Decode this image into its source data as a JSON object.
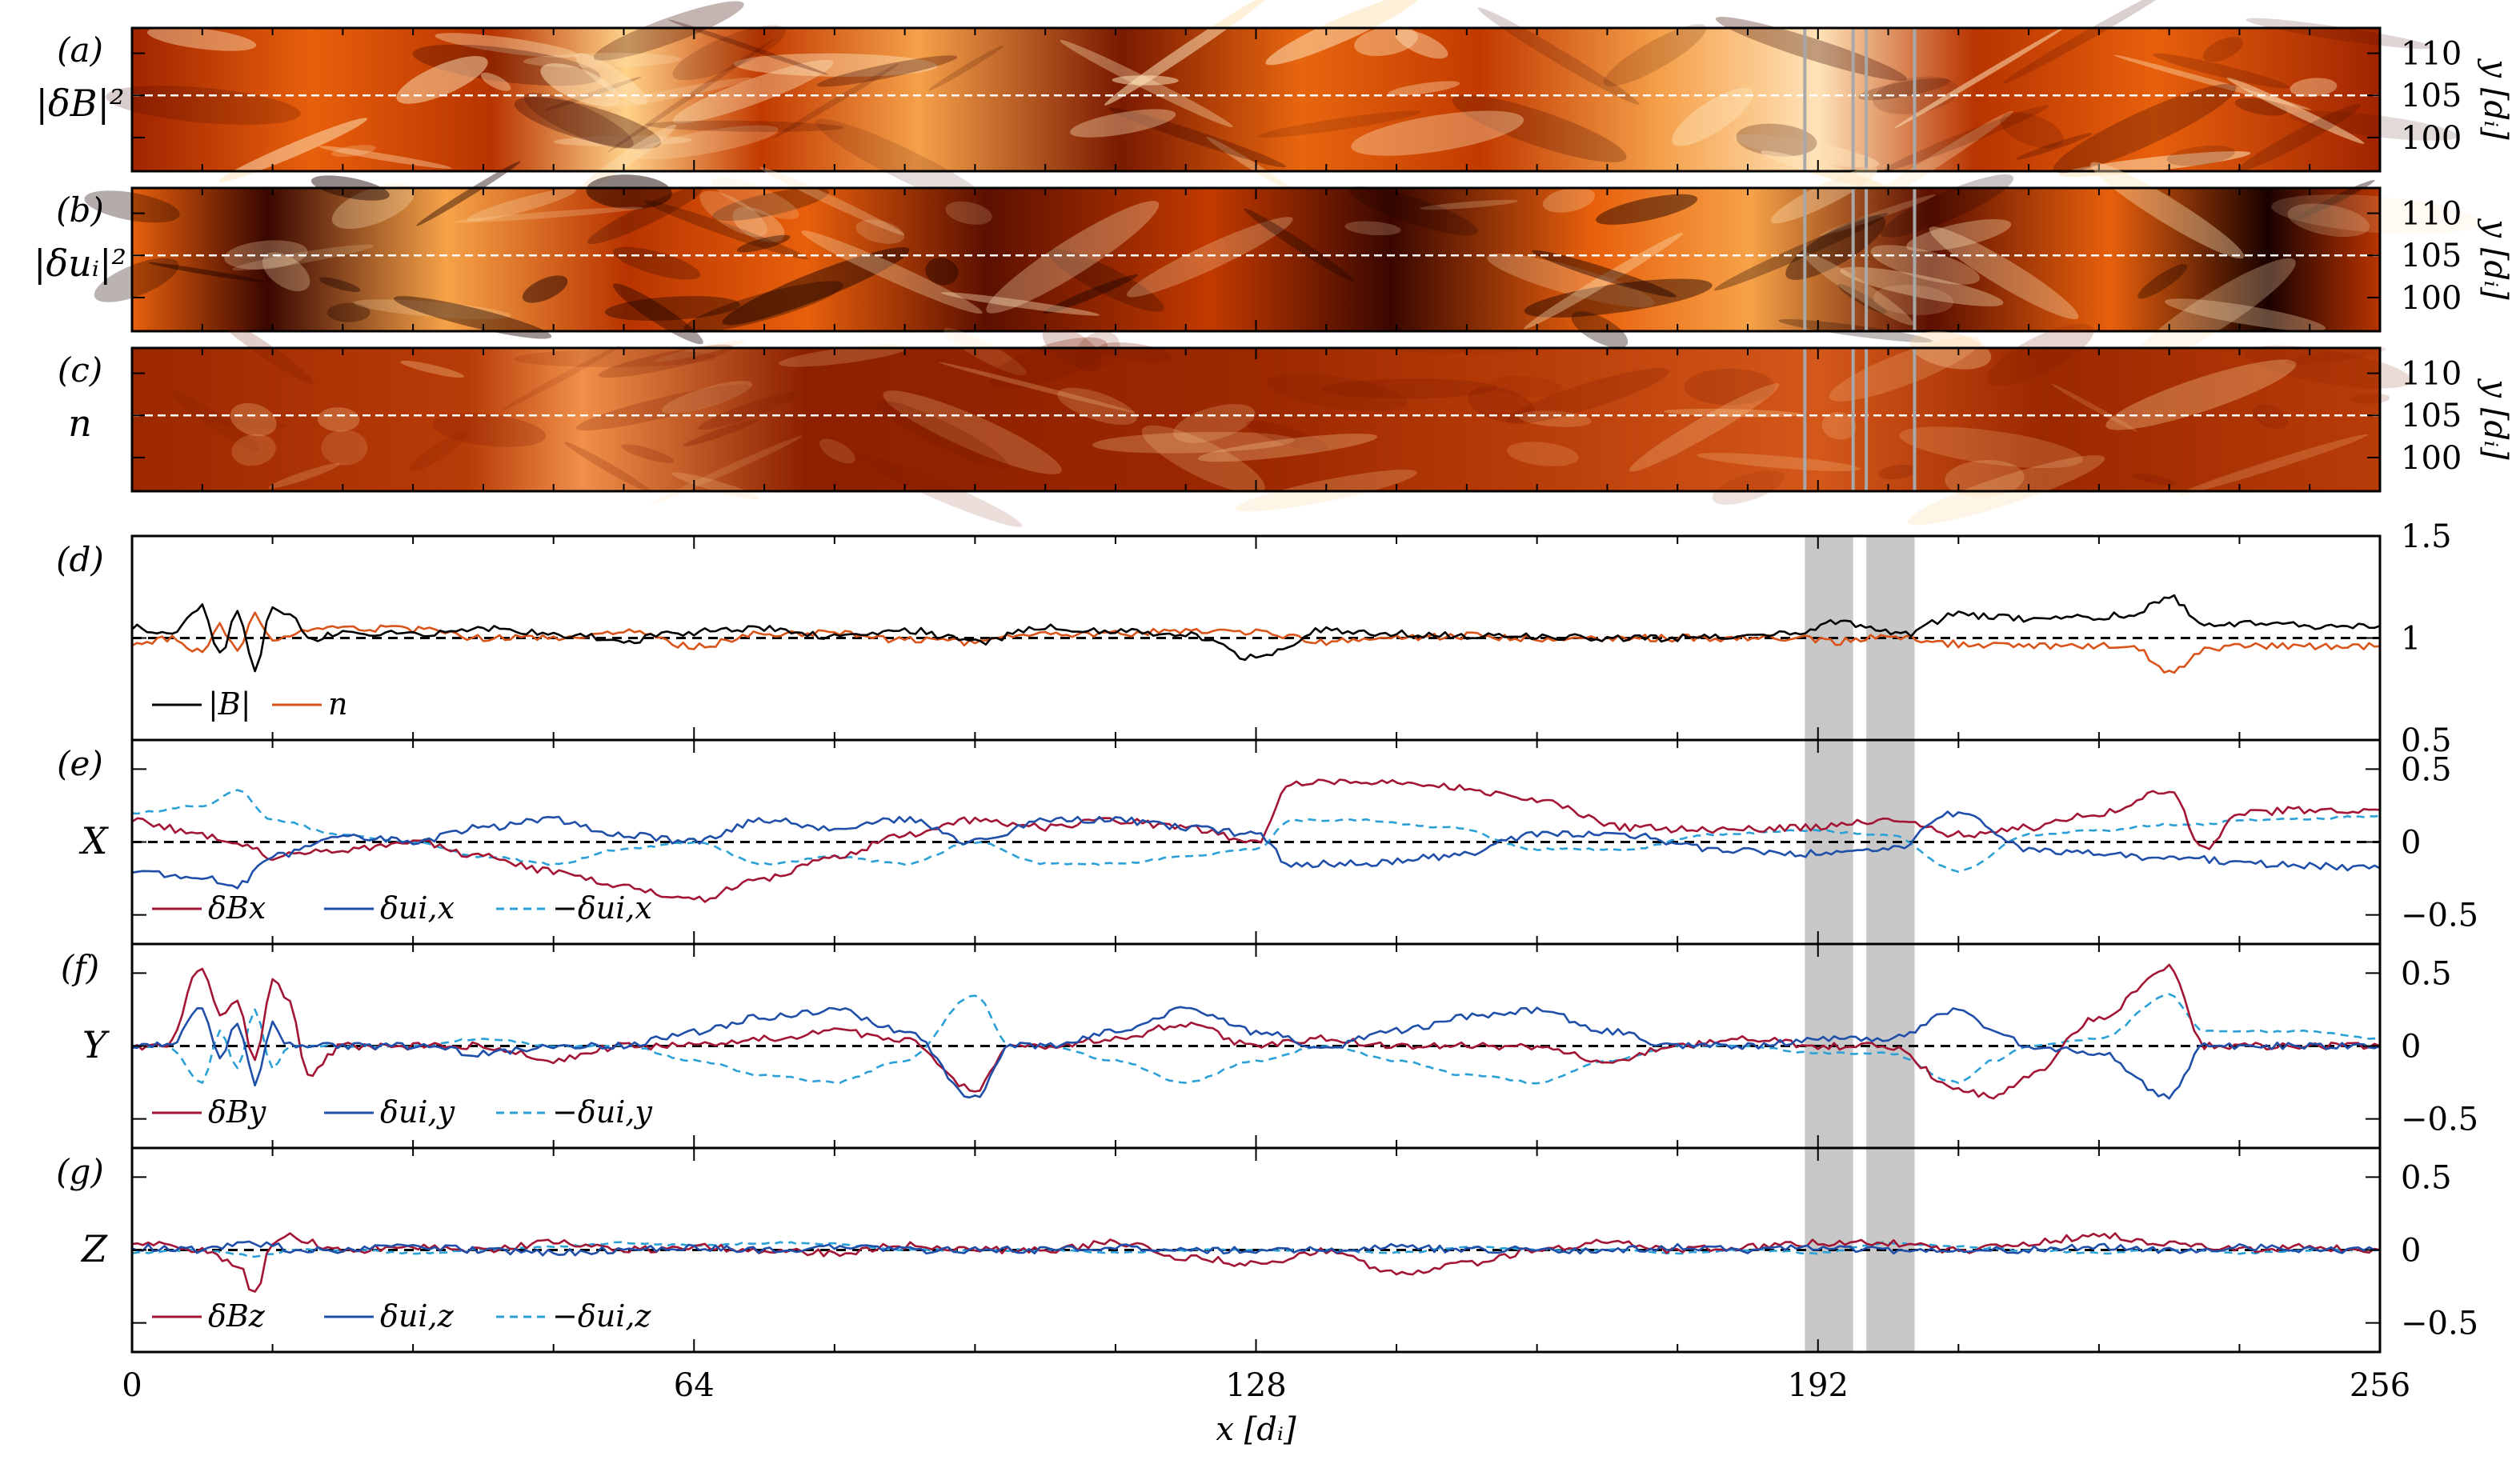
{
  "chart_data": [
    {
      "type": "heatmap",
      "panel_label": "(a)",
      "quantity_label": "|δB|²",
      "xlim": [
        0,
        256
      ],
      "ylim": [
        96,
        113
      ],
      "y_ticks": [
        "110",
        "105",
        "100"
      ],
      "ylabel": "y [dᵢ]",
      "dashed_line_y": 105,
      "cut_lines_x": [
        190.5,
        196,
        197.5,
        203
      ],
      "colormap": [
        "#3a0700",
        "#7a1a00",
        "#c23a00",
        "#e8660f",
        "#f5a04a",
        "#ffe3b8"
      ]
    },
    {
      "type": "heatmap",
      "panel_label": "(b)",
      "quantity_label": "|δuᵢ|²",
      "xlim": [
        0,
        256
      ],
      "ylim": [
        96,
        113
      ],
      "y_ticks": [
        "110",
        "105",
        "100"
      ],
      "ylabel": "y [dᵢ]",
      "dashed_line_y": 105,
      "cut_lines_x": [
        190.5,
        196,
        197.5,
        203
      ],
      "colormap": [
        "#1a0200",
        "#5c1000",
        "#b83400",
        "#e8600c",
        "#f6a248",
        "#ffe4b8"
      ]
    },
    {
      "type": "heatmap",
      "panel_label": "(c)",
      "quantity_label": "n",
      "xlim": [
        0,
        256
      ],
      "ylim": [
        96,
        113
      ],
      "y_ticks": [
        "110",
        "105",
        "100"
      ],
      "ylabel": "y [dᵢ]",
      "dashed_line_y": 105,
      "cut_lines_x": [
        190.5,
        196,
        197.5,
        203
      ],
      "colormap": [
        "#7a1800",
        "#9c2800",
        "#b83c08",
        "#d4581a",
        "#f0904a",
        "#ffd49a"
      ]
    },
    {
      "type": "line",
      "panel_label": "(d)",
      "xlim": [
        0,
        256
      ],
      "ylim": [
        0.5,
        1.5
      ],
      "y_ticks": [
        "1.5",
        "1",
        "0.5"
      ],
      "reference_line": 1,
      "shaded_x": [
        [
          190.5,
          196
        ],
        [
          197.5,
          203
        ]
      ],
      "series": [
        {
          "name": "|B|",
          "color": "#000000",
          "dash": "solid"
        },
        {
          "name": "n",
          "color": "#d9541a",
          "dash": "solid"
        }
      ],
      "x": [
        0,
        4,
        8,
        10,
        12,
        14,
        16,
        18,
        20,
        24,
        32,
        40,
        48,
        56,
        64,
        72,
        80,
        88,
        96,
        104,
        112,
        120,
        128,
        136,
        144,
        152,
        160,
        168,
        176,
        184,
        190,
        194,
        198,
        202,
        208,
        212,
        216,
        224,
        228,
        232,
        236,
        240,
        248,
        256
      ],
      "values_B": [
        1.05,
        1.02,
        1.15,
        0.92,
        1.12,
        0.85,
        1.15,
        1.12,
        0.99,
        1.03,
        1.02,
        1.05,
        1.02,
        0.99,
        1.03,
        1.05,
        1.01,
        1.04,
        0.98,
        1.05,
        1.03,
        1.02,
        0.9,
        1.04,
        1.02,
        1.01,
        1.01,
        1.0,
        1.0,
        1.0,
        1.03,
        1.08,
        1.05,
        1.02,
        1.12,
        1.1,
        1.09,
        1.1,
        1.12,
        1.2,
        1.06,
        1.07,
        1.06,
        1.06
      ],
      "values_n": [
        0.97,
        1.0,
        0.93,
        1.06,
        0.93,
        1.12,
        0.98,
        1.0,
        1.03,
        1.05,
        1.04,
        1.0,
        1.0,
        1.03,
        0.96,
        1.02,
        1.03,
        0.99,
        0.98,
        1.02,
        1.02,
        1.04,
        1.03,
        0.98,
        1.0,
        1.01,
        1.0,
        1.0,
        1.0,
        1.0,
        1.0,
        0.98,
        1.0,
        1.0,
        0.97,
        0.96,
        0.96,
        0.96,
        0.95,
        0.83,
        0.94,
        0.96,
        0.96,
        0.96
      ]
    },
    {
      "type": "line",
      "panel_label": "(e)",
      "quantity_label": "X",
      "xlim": [
        0,
        256
      ],
      "ylim": [
        -0.7,
        0.7
      ],
      "y_ticks": [
        "0.5",
        "0",
        "-0.5"
      ],
      "reference_line": 0,
      "shaded_x": [
        [
          190.5,
          196
        ],
        [
          197.5,
          203
        ]
      ],
      "series": [
        {
          "name": "δBx",
          "color": "#a31535",
          "dash": "solid"
        },
        {
          "name": "δui,x",
          "color": "#1f4fa8",
          "dash": "solid"
        },
        {
          "name": "−δui,x",
          "color": "#2aa0d6",
          "dash": "dashed"
        }
      ],
      "x": [
        0,
        8,
        12,
        16,
        24,
        32,
        40,
        48,
        56,
        64,
        72,
        80,
        88,
        96,
        104,
        112,
        120,
        128,
        132,
        140,
        150,
        160,
        170,
        180,
        190,
        200,
        208,
        216,
        224,
        232,
        236,
        240,
        248,
        256
      ],
      "values_Bx": [
        0.15,
        0.05,
        0.0,
        -0.1,
        -0.05,
        0.0,
        -0.1,
        -0.2,
        -0.3,
        -0.4,
        -0.25,
        -0.1,
        0.05,
        0.15,
        0.1,
        0.15,
        0.1,
        0.0,
        0.4,
        0.42,
        0.38,
        0.28,
        0.1,
        0.08,
        0.1,
        0.15,
        0.05,
        0.1,
        0.2,
        0.35,
        -0.05,
        0.2,
        0.22,
        0.22
      ],
      "values_uix": [
        -0.2,
        -0.25,
        -0.3,
        -0.1,
        0.05,
        0.0,
        0.1,
        0.15,
        0.05,
        0.0,
        0.15,
        0.1,
        0.15,
        0.0,
        0.15,
        0.15,
        0.1,
        0.05,
        -0.15,
        -0.15,
        -0.1,
        0.05,
        0.05,
        -0.05,
        -0.08,
        -0.05,
        0.2,
        -0.05,
        -0.08,
        -0.12,
        -0.12,
        -0.15,
        -0.16,
        -0.18
      ],
      "values_neg_uix": [
        0.2,
        0.25,
        0.35,
        0.15,
        0.05,
        0.0,
        -0.1,
        -0.15,
        -0.05,
        0.0,
        -0.15,
        -0.1,
        -0.15,
        0.0,
        -0.15,
        -0.15,
        -0.1,
        -0.05,
        0.15,
        0.15,
        0.1,
        -0.05,
        -0.05,
        0.05,
        0.08,
        0.05,
        -0.2,
        0.05,
        0.08,
        0.12,
        0.12,
        0.15,
        0.16,
        0.18
      ]
    },
    {
      "type": "line",
      "panel_label": "(f)",
      "quantity_label": "Y",
      "xlim": [
        0,
        256
      ],
      "ylim": [
        -0.7,
        0.7
      ],
      "y_ticks": [
        "0.5",
        "0",
        "-0.5"
      ],
      "reference_line": 0,
      "shaded_x": [
        [
          190.5,
          196
        ],
        [
          197.5,
          203
        ]
      ],
      "series": [
        {
          "name": "δBy",
          "color": "#a31535",
          "dash": "solid"
        },
        {
          "name": "δui,y",
          "color": "#1f4fa8",
          "dash": "solid"
        },
        {
          "name": "−δui,y",
          "color": "#2aa0d6",
          "dash": "dashed"
        }
      ],
      "x": [
        0,
        4,
        8,
        10,
        12,
        14,
        16,
        18,
        20,
        24,
        32,
        40,
        48,
        56,
        64,
        72,
        80,
        88,
        96,
        100,
        104,
        112,
        120,
        128,
        136,
        144,
        152,
        160,
        168,
        176,
        184,
        192,
        200,
        208,
        212,
        216,
        224,
        232,
        236,
        240,
        248,
        256
      ],
      "values_By": [
        0.0,
        0.0,
        0.55,
        0.2,
        0.3,
        -0.1,
        0.45,
        0.3,
        -0.2,
        0.0,
        0.0,
        0.0,
        -0.1,
        0.0,
        0.0,
        0.05,
        0.1,
        0.05,
        -0.3,
        0.0,
        0.0,
        0.05,
        0.15,
        0.0,
        0.05,
        0.0,
        0.0,
        0.0,
        -0.1,
        0.0,
        0.05,
        0.0,
        0.0,
        -0.3,
        -0.35,
        -0.2,
        0.2,
        0.55,
        0.0,
        0.0,
        0.0,
        0.0
      ],
      "values_uiy": [
        0.0,
        0.0,
        0.25,
        -0.1,
        0.15,
        -0.25,
        0.15,
        0.0,
        0.0,
        0.0,
        0.0,
        -0.05,
        0.0,
        0.0,
        0.1,
        0.2,
        0.25,
        0.1,
        -0.35,
        0.0,
        0.0,
        0.1,
        0.25,
        0.1,
        0.0,
        0.1,
        0.2,
        0.25,
        0.1,
        0.0,
        0.0,
        0.05,
        0.05,
        0.25,
        0.1,
        0.0,
        -0.05,
        -0.35,
        0.0,
        0.0,
        0.0,
        0.0
      ],
      "values_neg_uiy": [
        0.0,
        0.0,
        -0.25,
        0.1,
        -0.15,
        0.25,
        -0.15,
        0.0,
        0.0,
        0.0,
        0.0,
        0.05,
        0.0,
        0.0,
        -0.1,
        -0.2,
        -0.25,
        -0.1,
        0.35,
        0.0,
        0.0,
        -0.1,
        -0.25,
        -0.1,
        0.0,
        -0.1,
        -0.2,
        -0.25,
        -0.1,
        0.0,
        0.0,
        -0.05,
        -0.05,
        -0.25,
        -0.1,
        0.0,
        0.05,
        0.35,
        0.1,
        0.1,
        0.1,
        0.05
      ]
    },
    {
      "type": "line",
      "panel_label": "(g)",
      "quantity_label": "Z",
      "xlim": [
        0,
        256
      ],
      "ylim": [
        -0.7,
        0.7
      ],
      "y_ticks": [
        "0.5",
        "0",
        "-0.5"
      ],
      "reference_line": 0,
      "shaded_x": [
        [
          190.5,
          196
        ],
        [
          197.5,
          203
        ]
      ],
      "series": [
        {
          "name": "δBz",
          "color": "#a31535",
          "dash": "solid"
        },
        {
          "name": "δui,z",
          "color": "#1f4fa8",
          "dash": "solid"
        },
        {
          "name": "−δui,z",
          "color": "#2aa0d6",
          "dash": "dashed"
        }
      ],
      "x": [
        0,
        8,
        12,
        14,
        16,
        18,
        20,
        24,
        32,
        40,
        48,
        56,
        64,
        72,
        80,
        88,
        96,
        104,
        112,
        120,
        128,
        136,
        144,
        152,
        160,
        168,
        176,
        184,
        192,
        200,
        208,
        216,
        224,
        232,
        240,
        248,
        256
      ],
      "values_Bz": [
        0.05,
        0.0,
        -0.1,
        -0.3,
        0.05,
        0.1,
        0.05,
        0.0,
        0.02,
        0.0,
        0.05,
        0.0,
        0.02,
        0.0,
        -0.02,
        0.03,
        0.0,
        0.0,
        0.05,
        -0.05,
        -0.1,
        0.0,
        -0.15,
        -0.1,
        0.0,
        0.05,
        0.0,
        0.02,
        0.05,
        0.05,
        0.0,
        0.05,
        0.1,
        0.05,
        0.0,
        0.02,
        0.0
      ],
      "values_uiz": [
        0.02,
        0.0,
        0.03,
        0.05,
        0.03,
        0.0,
        0.0,
        0.0,
        0.02,
        0.0,
        -0.02,
        0.0,
        0.02,
        0.0,
        0.02,
        0.0,
        0.0,
        0.0,
        0.02,
        0.0,
        0.0,
        0.0,
        0.02,
        0.0,
        0.0,
        0.0,
        0.02,
        0.0,
        0.02,
        0.0,
        0.0,
        0.0,
        0.02,
        0.0,
        0.02,
        0.0,
        0.0
      ],
      "values_neg_uiz": [
        -0.02,
        0.0,
        -0.03,
        -0.05,
        -0.03,
        0.0,
        0.0,
        0.0,
        -0.02,
        0.0,
        0.02,
        0.05,
        0.03,
        0.05,
        0.04,
        0.0,
        0.0,
        0.0,
        -0.02,
        0.0,
        0.0,
        0.0,
        -0.02,
        0.02,
        0.0,
        0.0,
        -0.02,
        0.0,
        -0.02,
        0.05,
        0.02,
        0.0,
        -0.02,
        0.0,
        -0.02,
        0.0,
        0.0
      ]
    }
  ],
  "x_axis": {
    "xlim": [
      0,
      256
    ],
    "ticks": [
      "0",
      "64",
      "128",
      "192",
      "256"
    ],
    "label": "x [dᵢ]"
  }
}
